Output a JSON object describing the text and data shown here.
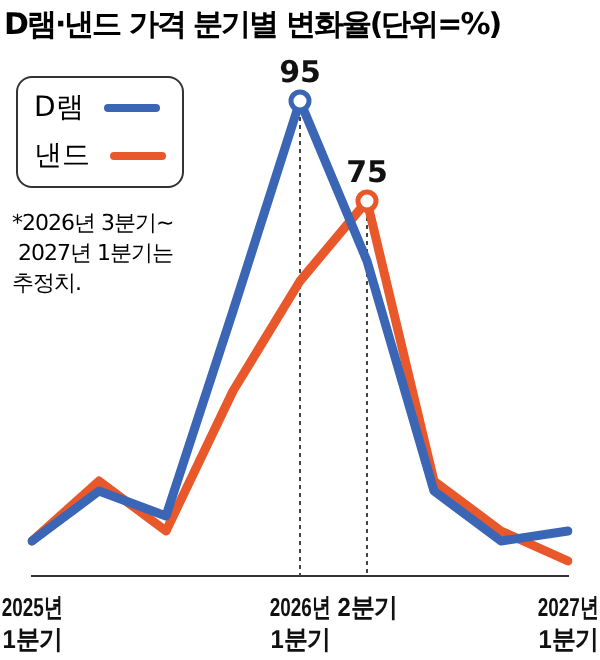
{
  "chart_data": {
    "type": "line",
    "title": "D램·낸드 가격 분기별 변화율(단위=%)",
    "categories": [
      "2025년\n1분기",
      null,
      null,
      null,
      "2026년\n1분기",
      "2분기",
      null,
      null,
      "2027년\n1분기"
    ],
    "series": [
      {
        "name": "D램",
        "color": "#3a66b5",
        "values": [
          7,
          17,
          12,
          53,
          95,
          63,
          17,
          7,
          9
        ],
        "value_labels": [
          null,
          null,
          null,
          null,
          "95",
          null,
          null,
          null,
          null
        ]
      },
      {
        "name": "낸드",
        "color": "#e8582a",
        "values": [
          7,
          19,
          9,
          37,
          59,
          75,
          19,
          9,
          3
        ],
        "value_labels": [
          null,
          null,
          null,
          null,
          null,
          "75",
          null,
          null,
          null
        ]
      }
    ],
    "tick_labels": "x",
    "legend": "top left",
    "grid": false,
    "marker": "none",
    "line_style": "solid",
    "ref_lines": [
      {
        "axis": "x",
        "value": "2026년\n1분기",
        "line_style": "dotted",
        "color": "#444444"
      },
      {
        "axis": "x",
        "value": "2분기",
        "line_style": "dotted",
        "color": "#444444"
      }
    ],
    "annotations": [
      "*2026년 3분기~\n 2027년 1분기는\n추정치."
    ]
  }
}
